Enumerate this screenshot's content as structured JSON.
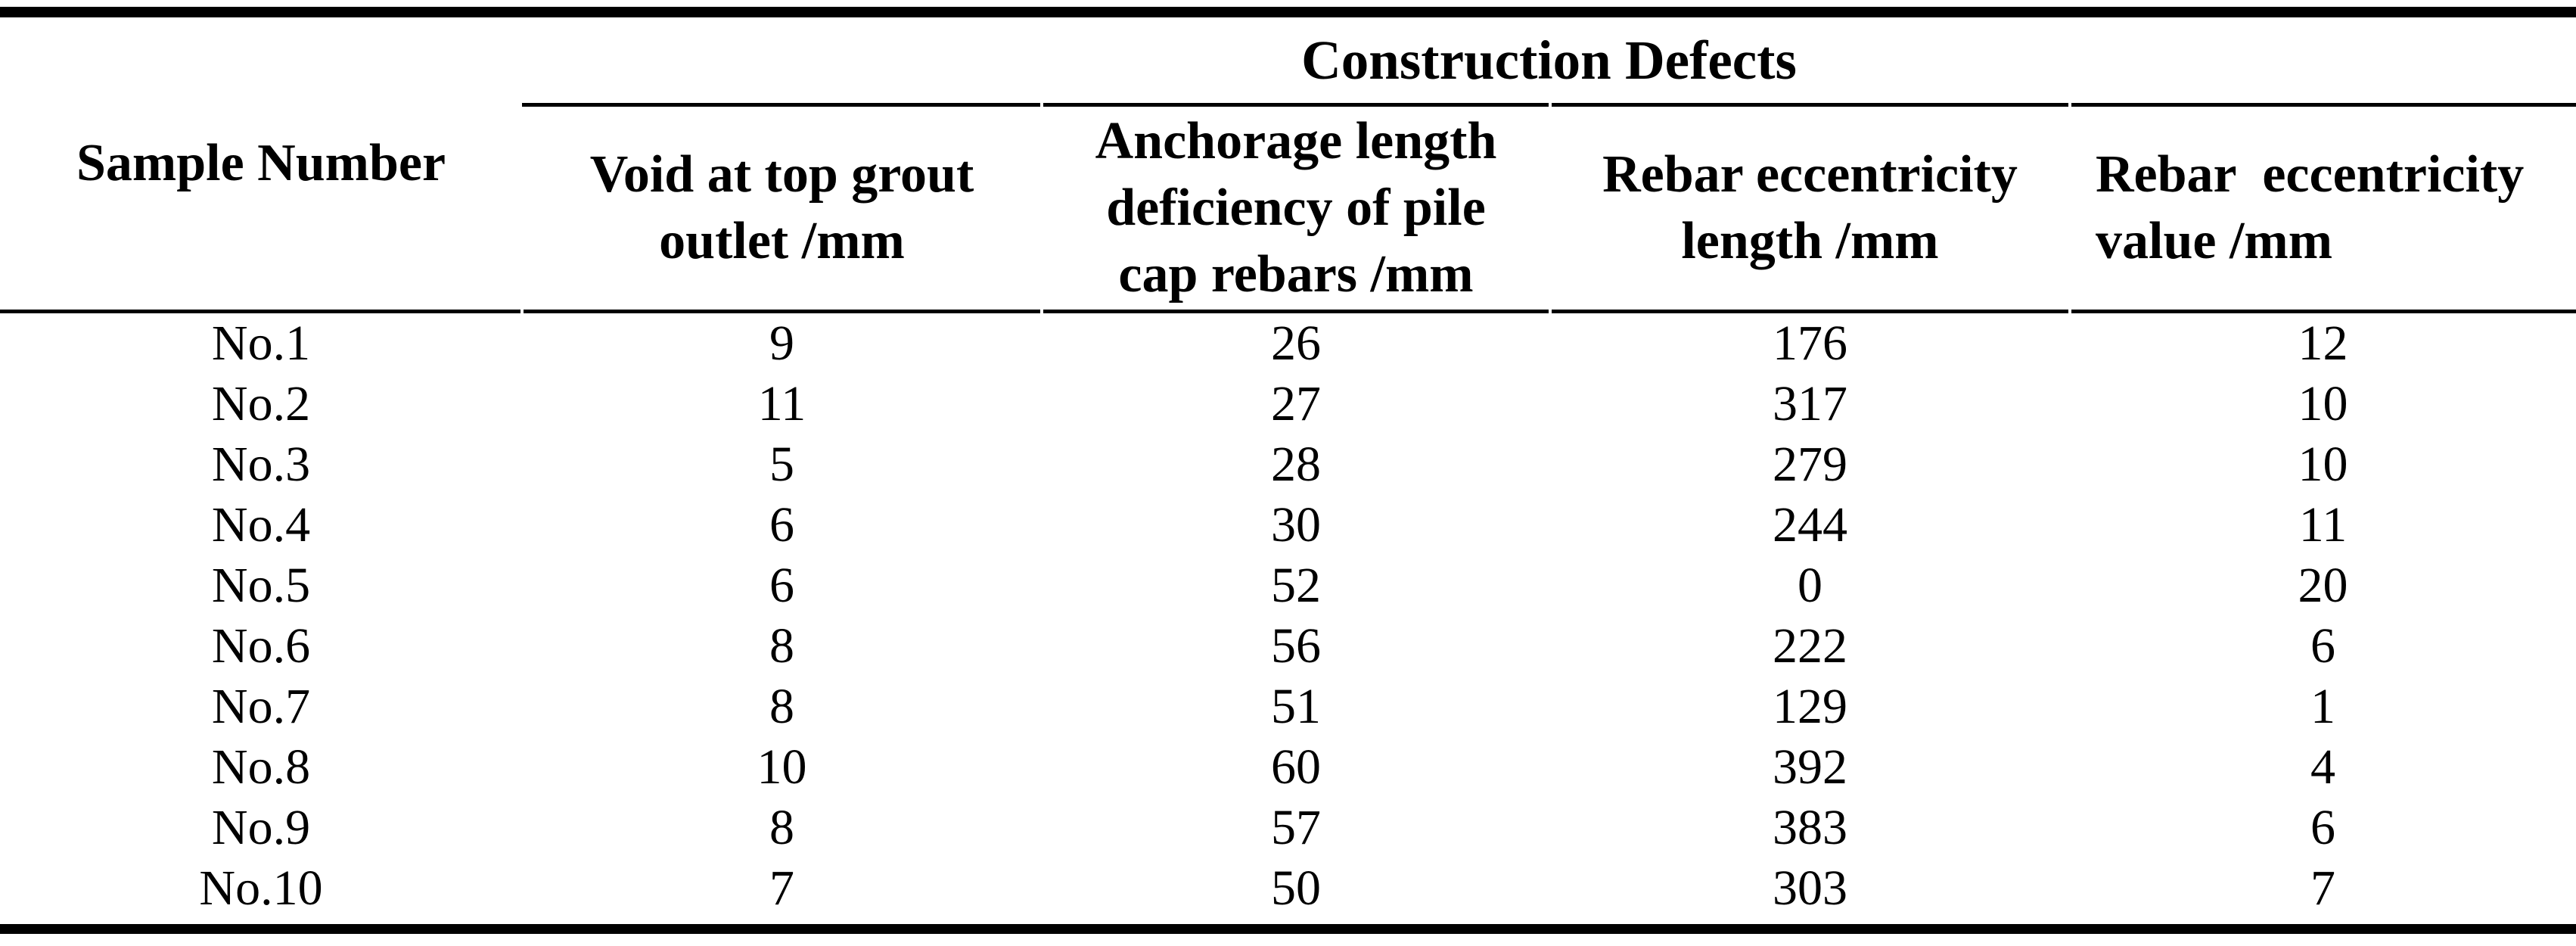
{
  "table": {
    "span_header": "Construction Defects",
    "columns": [
      {
        "id": "sample",
        "label_lines": [
          "Sample Number"
        ]
      },
      {
        "id": "void",
        "label_lines": [
          "Void at top grout",
          "outlet /mm"
        ]
      },
      {
        "id": "anchorage",
        "label_lines": [
          "Anchorage length",
          "deficiency of pile",
          "cap rebars /mm"
        ]
      },
      {
        "id": "ecc_length",
        "label_lines": [
          "Rebar eccentricity",
          "length /mm"
        ]
      },
      {
        "id": "ecc_value",
        "label_lines": [
          "Rebar  eccentricity",
          "value /mm"
        ]
      }
    ],
    "rows": [
      {
        "sample": "No.1",
        "void": "9",
        "anchorage": "26",
        "ecc_length": "176",
        "ecc_value": "12"
      },
      {
        "sample": "No.2",
        "void": "11",
        "anchorage": "27",
        "ecc_length": "317",
        "ecc_value": "10"
      },
      {
        "sample": "No.3",
        "void": "5",
        "anchorage": "28",
        "ecc_length": "279",
        "ecc_value": "10"
      },
      {
        "sample": "No.4",
        "void": "6",
        "anchorage": "30",
        "ecc_length": "244",
        "ecc_value": "11"
      },
      {
        "sample": "No.5",
        "void": "6",
        "anchorage": "52",
        "ecc_length": "0",
        "ecc_value": "20"
      },
      {
        "sample": "No.6",
        "void": "8",
        "anchorage": "56",
        "ecc_length": "222",
        "ecc_value": "6"
      },
      {
        "sample": "No.7",
        "void": "8",
        "anchorage": "51",
        "ecc_length": "129",
        "ecc_value": "1"
      },
      {
        "sample": "No.8",
        "void": "10",
        "anchorage": "60",
        "ecc_length": "392",
        "ecc_value": "4"
      },
      {
        "sample": "No.9",
        "void": "8",
        "anchorage": "57",
        "ecc_length": "383",
        "ecc_value": "6"
      },
      {
        "sample": "No.10",
        "void": "7",
        "anchorage": "50",
        "ecc_length": "303",
        "ecc_value": "7"
      }
    ],
    "colors": {
      "text": "#000000",
      "background": "#ffffff",
      "rule": "#000000"
    }
  }
}
